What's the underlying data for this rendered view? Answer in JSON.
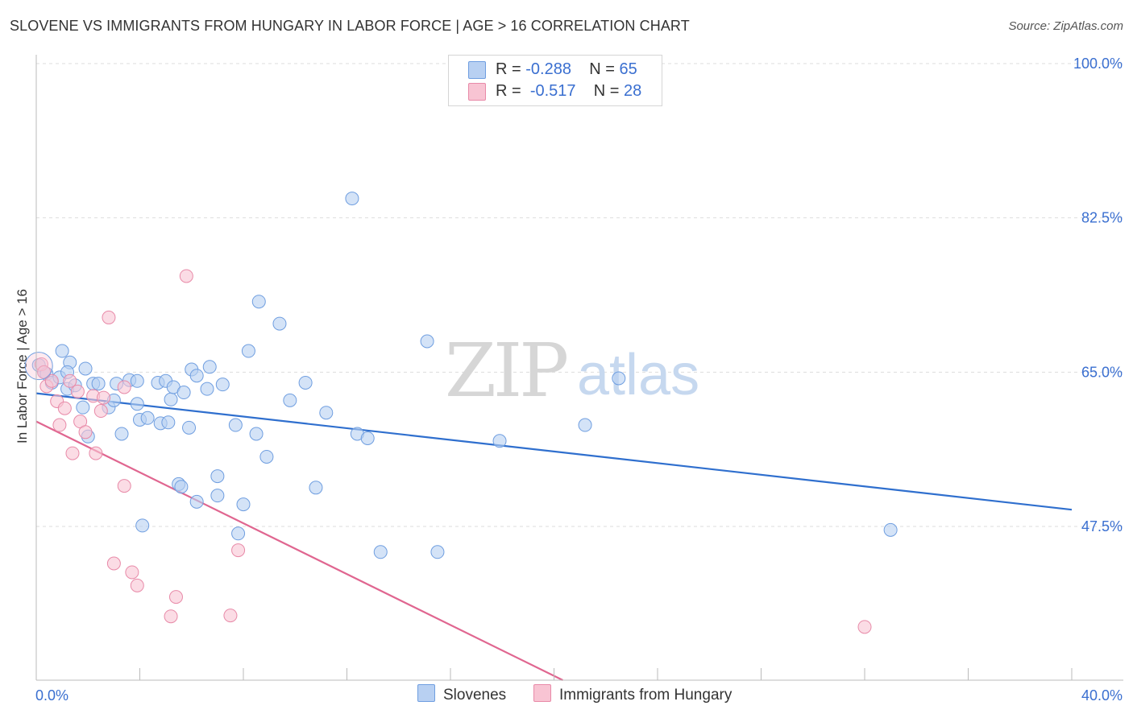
{
  "title": "SLOVENE VS IMMIGRANTS FROM HUNGARY IN LABOR FORCE | AGE > 16 CORRELATION CHART",
  "source": "Source: ZipAtlas.com",
  "watermark": {
    "zip": "ZIP",
    "atlas": "atlas"
  },
  "legend_top": {
    "rows": [
      {
        "r_label": "R = ",
        "r_value": "-0.288",
        "n_label": "N = ",
        "n_value": "65"
      },
      {
        "r_label": "R = ",
        "r_value": "-0.517",
        "n_label": "N = ",
        "n_value": "28"
      }
    ]
  },
  "colors": {
    "blue_fill": "#b8d0f2",
    "blue_stroke": "#6f9ee0",
    "blue_line": "#2f6fce",
    "pink_fill": "#f8c4d3",
    "pink_stroke": "#e88aa8",
    "pink_line": "#e06690",
    "tick_label": "#3a6fd0",
    "grid": "#dddddd"
  },
  "chart_data": {
    "type": "scatter",
    "title": "SLOVENE VS IMMIGRANTS FROM HUNGARY IN LABOR FORCE | AGE > 16 CORRELATION CHART",
    "xlabel": "",
    "ylabel": "In Labor Force | Age > 16",
    "xlim": [
      0,
      40
    ],
    "ylim": [
      32.5,
      101.5
    ],
    "x_tick_labels": [
      "0.0%",
      "40.0%"
    ],
    "y_ticks": [
      100.0,
      82.5,
      65.0,
      47.5
    ],
    "y_tick_labels": [
      "100.0%",
      "82.5%",
      "65.0%",
      "47.5%"
    ],
    "grid": true,
    "legend_position": "top-center",
    "series": [
      {
        "name": "Slovenes",
        "r": -0.288,
        "n": 65,
        "trend": {
          "x": [
            0,
            40
          ],
          "y": [
            62.6,
            49.4
          ]
        },
        "points": [
          [
            0.1,
            65.8
          ],
          [
            0.3,
            65.0
          ],
          [
            0.4,
            64.8
          ],
          [
            0.6,
            63.8
          ],
          [
            0.9,
            64.4
          ],
          [
            1.0,
            67.4
          ],
          [
            1.2,
            63.1
          ],
          [
            1.3,
            66.1
          ],
          [
            1.5,
            63.5
          ],
          [
            1.9,
            65.4
          ],
          [
            2.0,
            57.7
          ],
          [
            2.2,
            63.7
          ],
          [
            2.4,
            63.7
          ],
          [
            2.8,
            61.0
          ],
          [
            3.0,
            61.8
          ],
          [
            3.1,
            63.7
          ],
          [
            3.3,
            58.0
          ],
          [
            3.6,
            64.1
          ],
          [
            3.9,
            61.4
          ],
          [
            4.0,
            59.6
          ],
          [
            4.3,
            59.8
          ],
          [
            4.7,
            63.8
          ],
          [
            4.8,
            59.2
          ],
          [
            5.0,
            64.0
          ],
          [
            5.1,
            59.3
          ],
          [
            5.2,
            61.9
          ],
          [
            5.3,
            63.3
          ],
          [
            5.5,
            52.3
          ],
          [
            5.7,
            62.7
          ],
          [
            5.9,
            58.7
          ],
          [
            6.0,
            65.3
          ],
          [
            6.2,
            64.6
          ],
          [
            6.6,
            63.1
          ],
          [
            6.7,
            65.6
          ],
          [
            7.0,
            53.2
          ],
          [
            7.2,
            63.6
          ],
          [
            7.7,
            59.0
          ],
          [
            7.8,
            46.7
          ],
          [
            8.0,
            50.0
          ],
          [
            8.2,
            67.4
          ],
          [
            8.5,
            58.0
          ],
          [
            8.6,
            73.0
          ],
          [
            8.9,
            55.4
          ],
          [
            9.4,
            70.5
          ],
          [
            9.8,
            61.8
          ],
          [
            10.4,
            63.8
          ],
          [
            10.8,
            51.9
          ],
          [
            11.2,
            60.4
          ],
          [
            12.2,
            84.7
          ],
          [
            12.4,
            58.0
          ],
          [
            12.8,
            57.5
          ],
          [
            13.3,
            44.6
          ],
          [
            15.1,
            68.5
          ],
          [
            15.5,
            44.6
          ],
          [
            17.9,
            57.2
          ],
          [
            21.2,
            59.0
          ],
          [
            22.5,
            64.3
          ],
          [
            33.0,
            47.1
          ],
          [
            1.8,
            61.0
          ],
          [
            3.9,
            64.0
          ],
          [
            7.0,
            51.0
          ],
          [
            6.2,
            50.3
          ],
          [
            5.6,
            52.0
          ],
          [
            4.1,
            47.6
          ],
          [
            1.2,
            65.0
          ]
        ]
      },
      {
        "name": "Immigrants from Hungary",
        "r": -0.517,
        "n": 28,
        "trend": {
          "x": [
            0,
            40
          ],
          "y": [
            59.4,
            1.7
          ]
        },
        "points": [
          [
            0.2,
            65.9
          ],
          [
            0.4,
            63.4
          ],
          [
            0.6,
            64.0
          ],
          [
            0.8,
            61.7
          ],
          [
            0.9,
            59.0
          ],
          [
            1.1,
            60.9
          ],
          [
            1.3,
            64.0
          ],
          [
            1.4,
            55.8
          ],
          [
            1.6,
            62.8
          ],
          [
            1.7,
            59.4
          ],
          [
            1.9,
            58.2
          ],
          [
            2.2,
            62.3
          ],
          [
            2.3,
            55.8
          ],
          [
            2.5,
            60.6
          ],
          [
            2.6,
            62.1
          ],
          [
            2.8,
            71.2
          ],
          [
            3.0,
            43.3
          ],
          [
            3.4,
            63.3
          ],
          [
            3.4,
            52.1
          ],
          [
            3.7,
            42.3
          ],
          [
            3.9,
            40.8
          ],
          [
            5.2,
            37.3
          ],
          [
            5.4,
            39.5
          ],
          [
            5.8,
            75.9
          ],
          [
            7.5,
            37.4
          ],
          [
            7.8,
            44.8
          ],
          [
            32.0,
            36.1
          ],
          [
            0.3,
            65.0
          ]
        ]
      }
    ]
  },
  "bottom_legend": [
    {
      "label": "Slovenes"
    },
    {
      "label": "Immigrants from Hungary"
    }
  ]
}
